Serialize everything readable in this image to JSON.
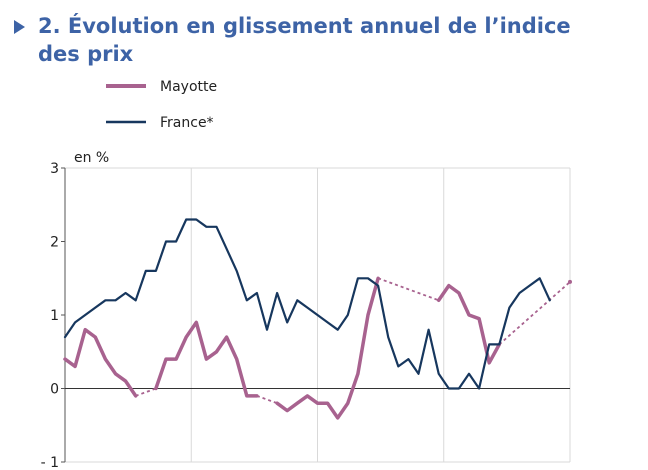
{
  "title": "2. Évolution en glissement annuel de l’indice des prix",
  "chart_data": {
    "type": "line",
    "ylabel": "en %",
    "ylim": [
      -1,
      3
    ],
    "y_ticks": [
      "3",
      "2",
      "1",
      "0",
      "- 1"
    ],
    "grid": "vertical lines only",
    "legend_placement": "top-left",
    "x_positions": [
      0,
      1,
      2,
      3,
      4,
      5,
      6,
      7,
      8,
      9,
      10,
      11,
      12,
      13,
      14,
      15,
      16,
      17,
      18,
      19,
      20,
      21,
      22,
      23,
      24,
      25,
      26,
      27,
      28,
      29,
      30,
      31,
      32,
      33,
      34,
      35,
      36,
      37,
      38,
      39,
      40,
      41,
      42,
      43,
      44,
      45,
      46,
      47,
      48,
      49,
      50
    ],
    "series": [
      {
        "name": "Mayotte",
        "color": "#a8628f",
        "values": [
          0.4,
          0.3,
          0.8,
          0.7,
          0.4,
          0.2,
          0.1,
          -0.1,
          null,
          0.0,
          0.4,
          0.4,
          0.7,
          0.9,
          0.4,
          0.5,
          0.7,
          0.4,
          -0.1,
          -0.1,
          null,
          -0.2,
          -0.3,
          -0.2,
          -0.1,
          -0.2,
          -0.2,
          -0.4,
          -0.2,
          0.2,
          1.0,
          1.5,
          null,
          null,
          null,
          null,
          null,
          1.2,
          1.4,
          1.3,
          1.0,
          0.95,
          0.35,
          0.6,
          null,
          null,
          null,
          null,
          null,
          null,
          1.45
        ],
        "dashed_gaps": true
      },
      {
        "name": "France*",
        "color": "#17375e",
        "values": [
          0.7,
          0.9,
          1.0,
          1.1,
          1.2,
          1.2,
          1.3,
          1.2,
          1.6,
          1.6,
          2.0,
          2.0,
          2.3,
          2.3,
          2.2,
          2.2,
          1.9,
          1.6,
          1.2,
          1.3,
          0.8,
          1.3,
          0.9,
          1.2,
          1.1,
          1.0,
          0.9,
          0.8,
          1.0,
          1.5,
          1.5,
          1.4,
          0.7,
          0.3,
          0.4,
          0.2,
          0.8,
          0.2,
          0.0,
          0.0,
          0.2,
          0.0,
          0.6,
          0.6,
          1.1,
          1.3,
          1.4,
          1.5,
          1.2,
          null,
          null
        ]
      }
    ]
  }
}
